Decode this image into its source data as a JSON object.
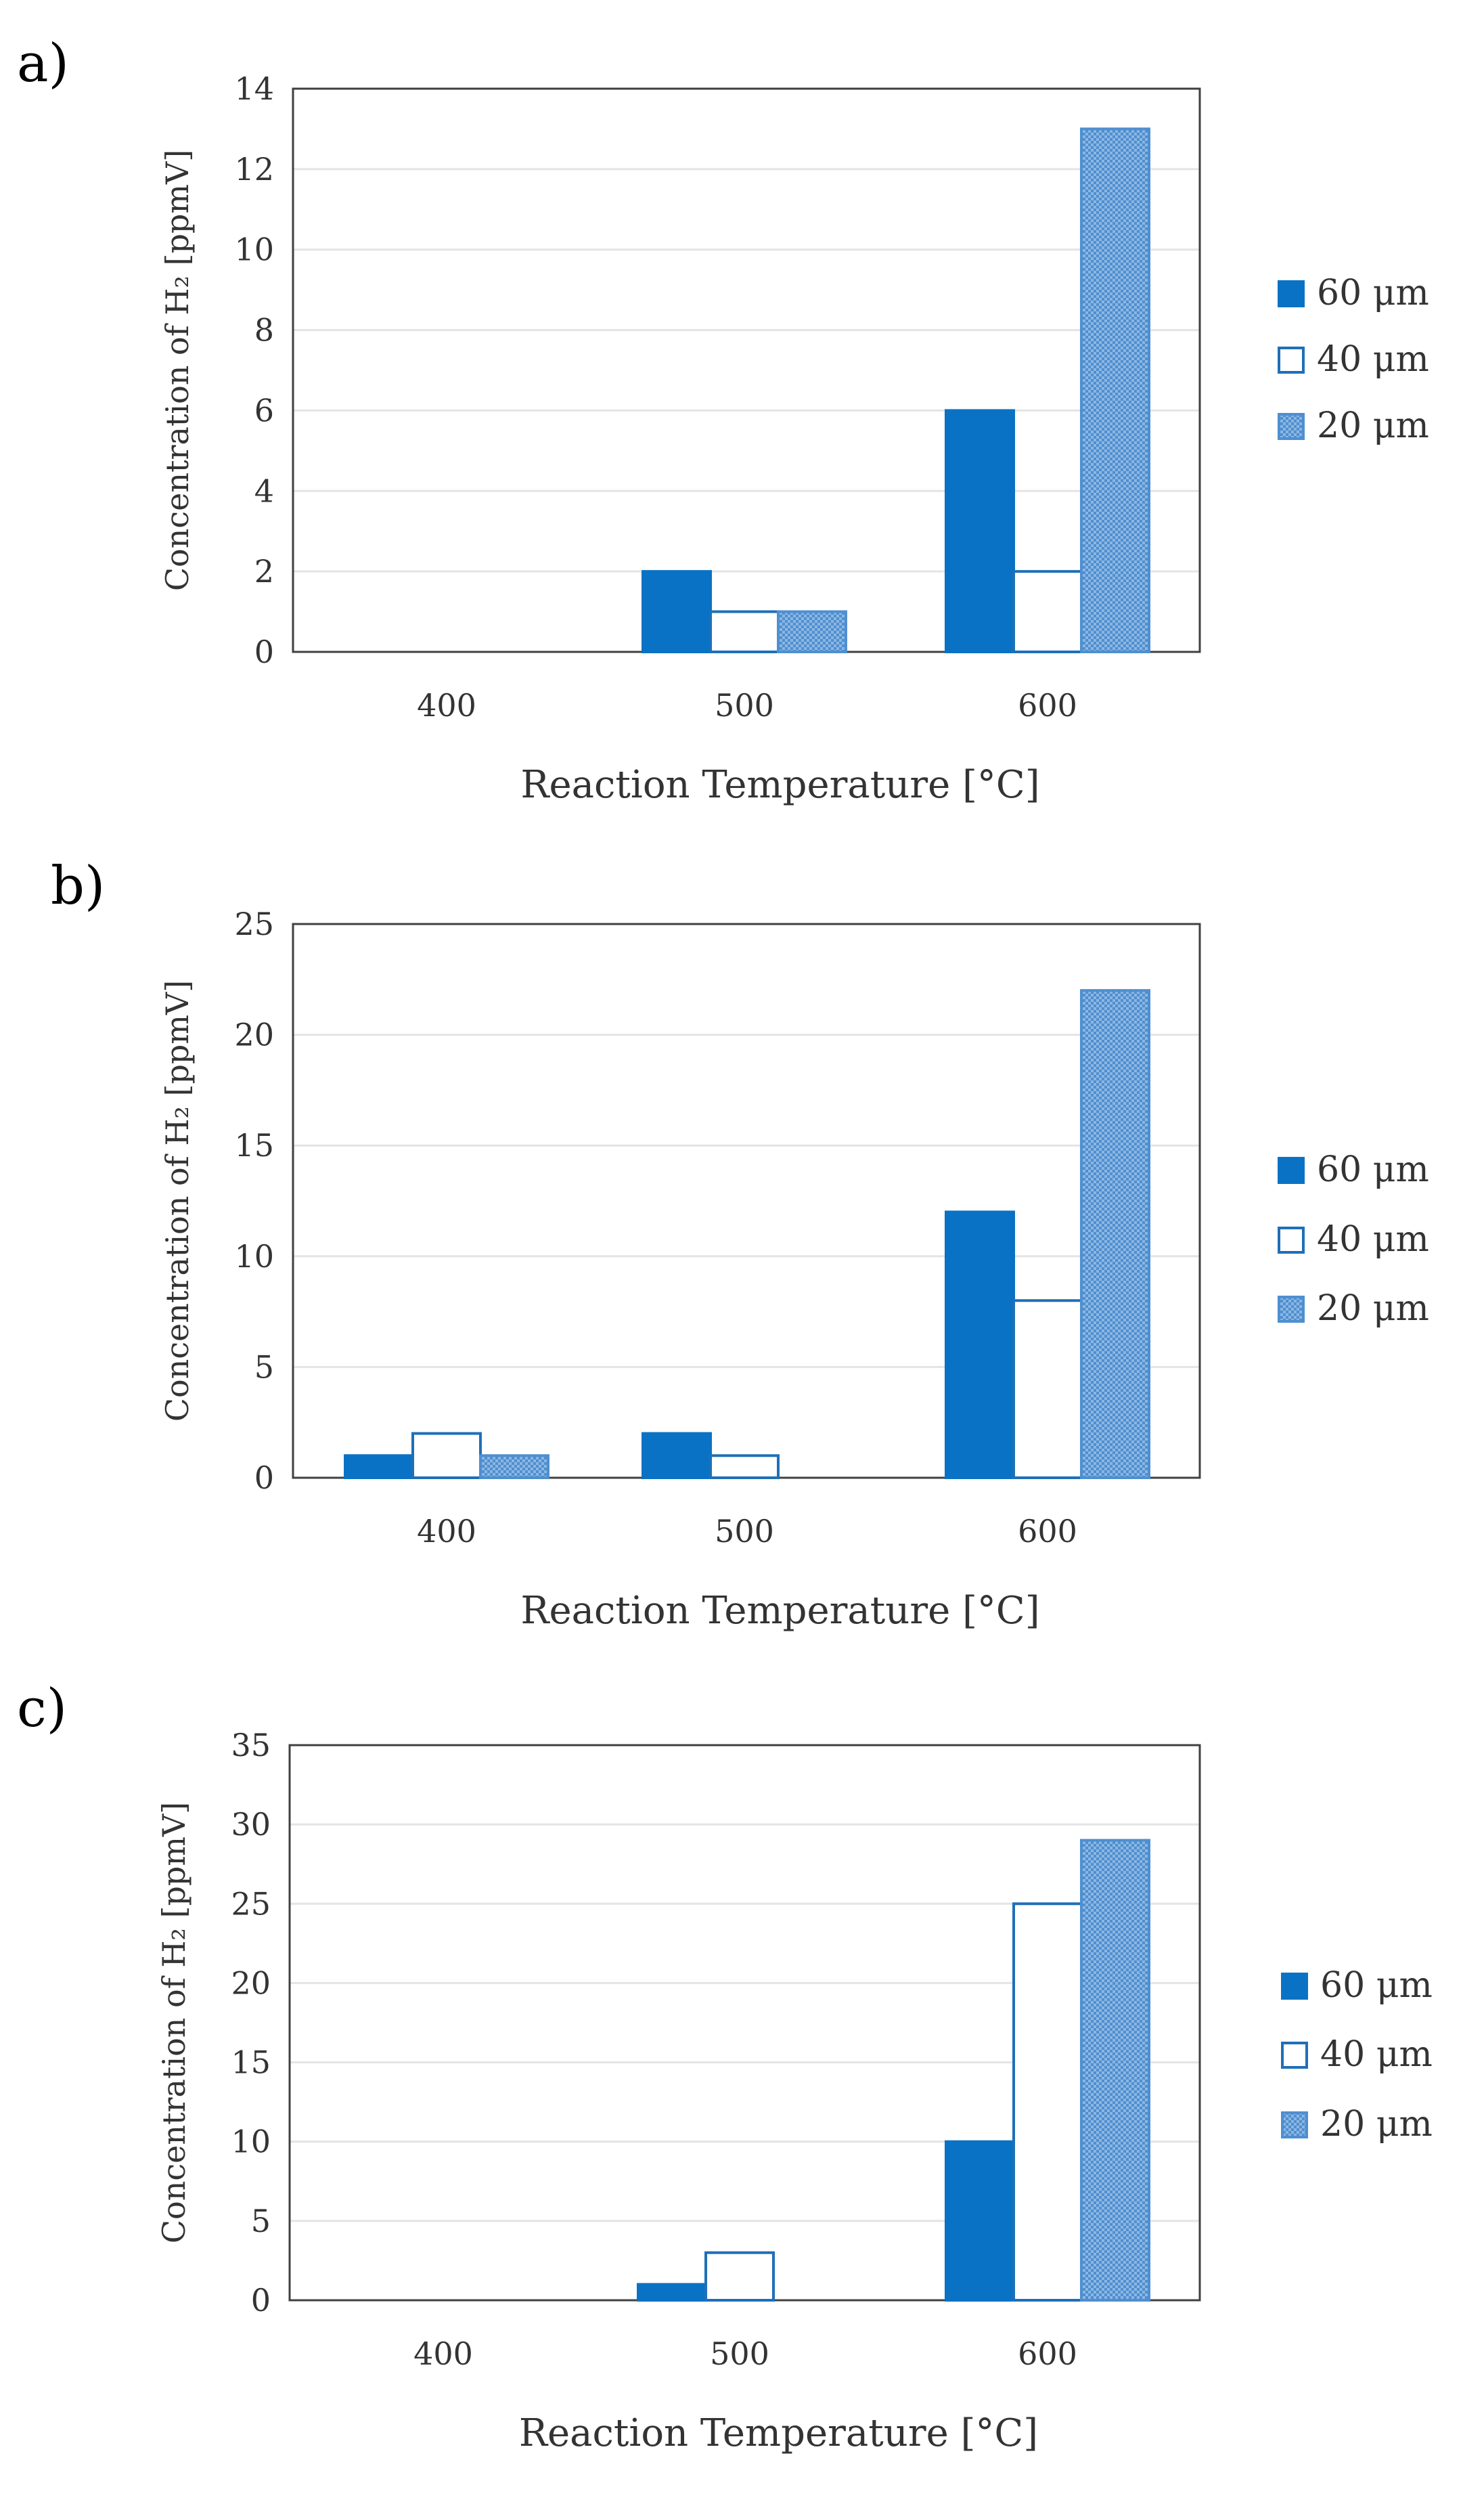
{
  "colors": {
    "s60": "#0a72c4",
    "s40": "#ffffff",
    "s20": "#4f8fd0",
    "stroke": "#1f6fb8",
    "axis": "#404040",
    "grid": "#e4e4e4"
  },
  "chart_data": [
    {
      "panel_label": "a)",
      "type": "bar",
      "categories": [
        "400",
        "500",
        "600"
      ],
      "series": [
        {
          "name": "60 μm",
          "values": [
            0,
            2,
            6
          ]
        },
        {
          "name": "40 μm",
          "values": [
            0,
            1,
            2
          ]
        },
        {
          "name": "20 μm",
          "values": [
            0,
            1,
            13
          ]
        }
      ],
      "xlabel": "Reaction Temperature [°C]",
      "ylabel": "Concentration of H₂ [ppmV]",
      "ylim": [
        0,
        14
      ],
      "yticks": [
        "0",
        "2",
        "4",
        "6",
        "8",
        "10",
        "12",
        "14"
      ],
      "grid": true,
      "legend": "right"
    },
    {
      "panel_label": "b)",
      "type": "bar",
      "categories": [
        "400",
        "500",
        "600"
      ],
      "series": [
        {
          "name": "60 μm",
          "values": [
            1,
            2,
            12
          ]
        },
        {
          "name": "40 μm",
          "values": [
            2,
            1,
            8
          ]
        },
        {
          "name": "20 μm",
          "values": [
            1,
            0,
            22
          ]
        }
      ],
      "xlabel": "Reaction Temperature [°C]",
      "ylabel": "Concentration of H₂ [ppmV]",
      "ylim": [
        0,
        25
      ],
      "yticks": [
        "0",
        "5",
        "10",
        "15",
        "20",
        "25"
      ],
      "grid": true,
      "legend": "right"
    },
    {
      "panel_label": "c)",
      "type": "bar",
      "categories": [
        "400",
        "500",
        "600"
      ],
      "series": [
        {
          "name": "60 μm",
          "values": [
            0,
            1,
            10
          ]
        },
        {
          "name": "40 μm",
          "values": [
            0,
            3,
            25
          ]
        },
        {
          "name": "20 μm",
          "values": [
            0,
            0,
            29
          ]
        }
      ],
      "xlabel": "Reaction Temperature [°C]",
      "ylabel": "Concentration of H₂ [ppmV]",
      "ylim": [
        0,
        35
      ],
      "yticks": [
        "0",
        "5",
        "10",
        "15",
        "20",
        "25",
        "30",
        "35"
      ],
      "grid": true,
      "legend": "right"
    }
  ]
}
